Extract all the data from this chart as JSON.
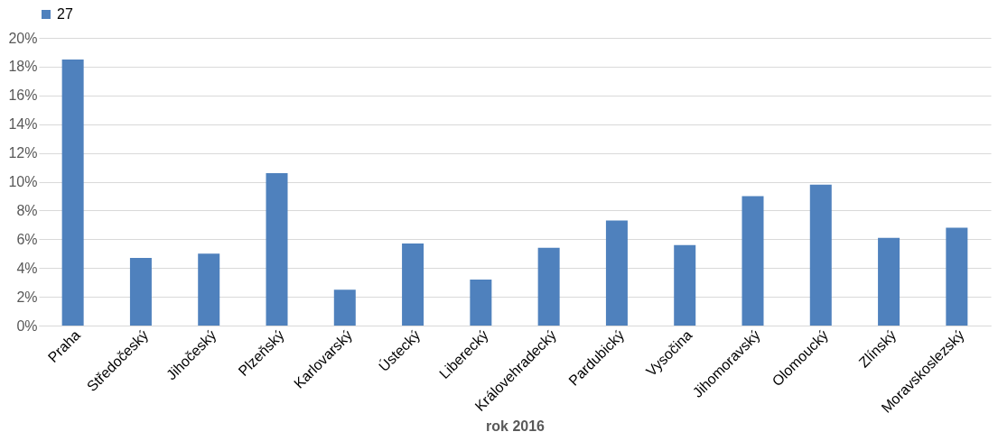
{
  "chart_data": {
    "type": "bar",
    "xlabel": "rok 2016",
    "categories": [
      "Praha",
      "Středočeský",
      "Jihočeský",
      "Plzeňský",
      "Karlovarský",
      "Ústecký",
      "Liberecký",
      "Královehradecký",
      "Pardubický",
      "Vysočina",
      "Jihomoravský",
      "Olomoucký",
      "Zlínský",
      "Moravskoslezský"
    ],
    "series": [
      {
        "name": "27",
        "color": "#4f81bd",
        "values": [
          18.5,
          4.7,
          5.0,
          10.6,
          2.5,
          5.7,
          3.2,
          5.4,
          7.3,
          5.6,
          9.0,
          9.8,
          6.1,
          6.8
        ]
      }
    ],
    "ylim": [
      0,
      20
    ],
    "yticks": [
      {
        "value": 0,
        "label": "0%"
      },
      {
        "value": 2,
        "label": "2%"
      },
      {
        "value": 4,
        "label": "4%"
      },
      {
        "value": 6,
        "label": "6%"
      },
      {
        "value": 8,
        "label": "8%"
      },
      {
        "value": 10,
        "label": "10%"
      },
      {
        "value": 12,
        "label": "12%"
      },
      {
        "value": 14,
        "label": "14%"
      },
      {
        "value": 16,
        "label": "16%"
      },
      {
        "value": 18,
        "label": "18%"
      },
      {
        "value": 20,
        "label": "20%"
      }
    ],
    "grid": "y",
    "legend": "top"
  }
}
